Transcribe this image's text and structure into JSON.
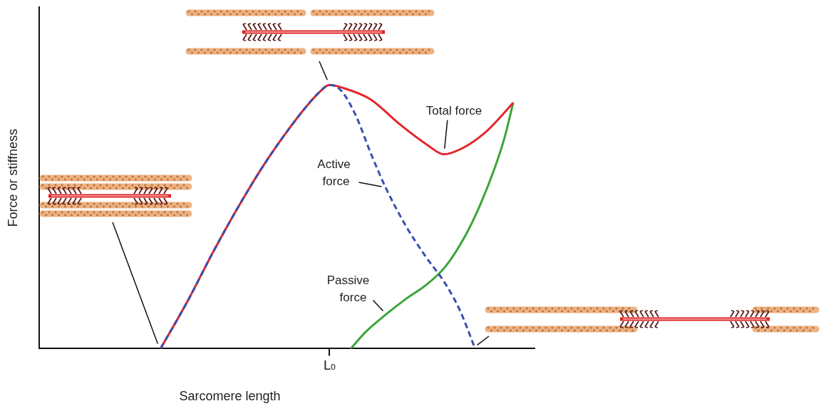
{
  "chart_data": {
    "type": "line",
    "x_label": "Sarcomere length",
    "y_label": "Force or stiffness",
    "xlim": [
      0,
      100
    ],
    "ylim": [
      0,
      100
    ],
    "xticks": [
      {
        "value": 58.6,
        "label": "L₀"
      }
    ],
    "yticks": [],
    "grid": false,
    "tick_labels": "x",
    "series": [
      {
        "name": "Total force",
        "color": "#e3262b",
        "line_style": "solid",
        "x": [
          24.5,
          30,
          35,
          40,
          45,
          50,
          54,
          56.5,
          58.6,
          61,
          66.9,
          72.7,
          78.4,
          81.7,
          85.6,
          89.9,
          92.8,
          95.7
        ],
        "values": [
          0,
          14,
          28,
          41,
          53,
          63.5,
          71,
          75,
          77.2,
          76.5,
          73,
          65.8,
          59.6,
          56.9,
          58.8,
          63.1,
          67.3,
          72
        ]
      },
      {
        "name": "Active force",
        "color": "#3a4fb0",
        "line_style": "dashed",
        "x": [
          24.5,
          30,
          35,
          40,
          45,
          50,
          54,
          56.5,
          58.6,
          61,
          64,
          67,
          70,
          74,
          78,
          82,
          85,
          88
        ],
        "values": [
          0,
          14,
          28,
          41,
          53,
          63.5,
          71,
          75,
          77.2,
          75.5,
          68,
          57,
          47,
          36,
          27,
          19,
          11,
          0
        ]
      },
      {
        "name": "Passive force",
        "color": "#3aa53a",
        "line_style": "solid",
        "x": [
          62.9,
          66,
          70,
          74,
          78,
          82,
          86,
          89,
          92,
          94,
          95.7
        ],
        "values": [
          0,
          5,
          10,
          14.5,
          18.5,
          24,
          33,
          42,
          53,
          62,
          72
        ]
      }
    ]
  }
}
